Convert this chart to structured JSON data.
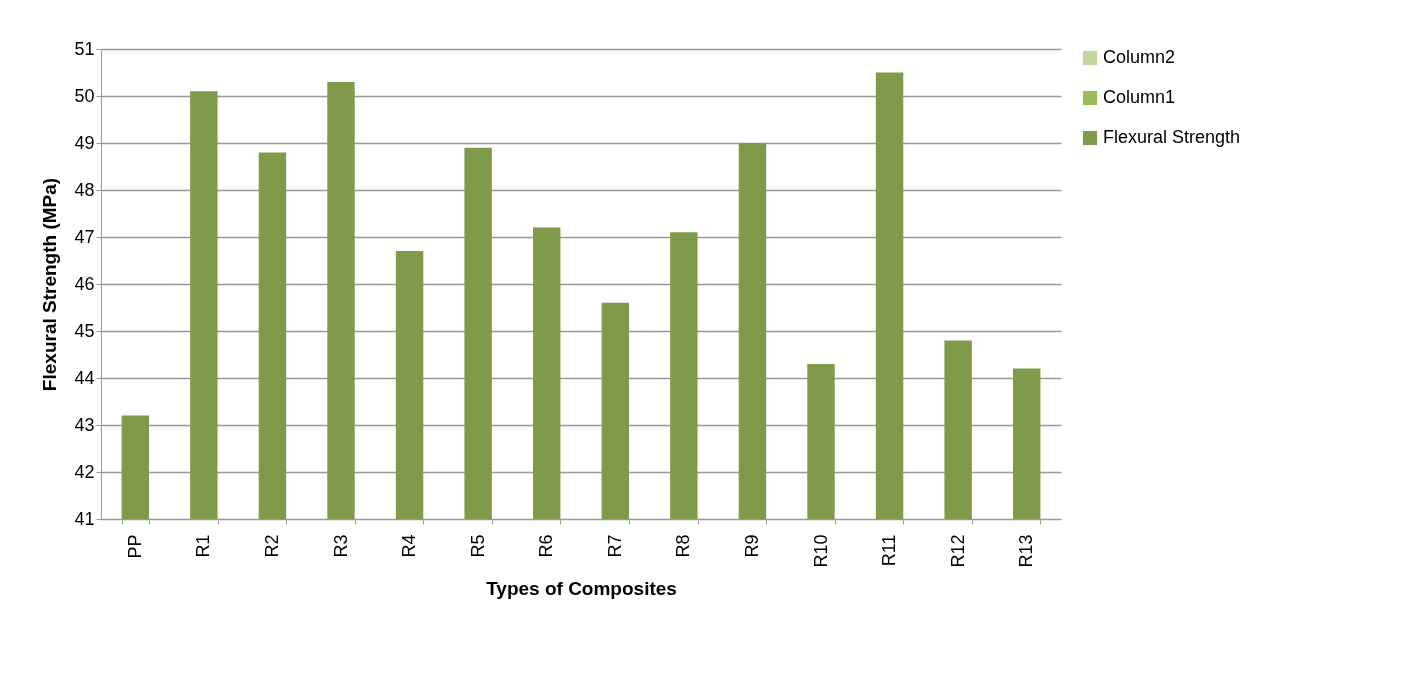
{
  "chart_data": {
    "type": "bar",
    "xlabel": "Types of Composites",
    "ylabel": "Flexural Strength (MPa)",
    "categories": [
      "PP",
      "R1",
      "R2",
      "R3",
      "R4",
      "R5",
      "R6",
      "R7",
      "R8",
      "R9",
      "R10",
      "R11",
      "R12",
      "R13"
    ],
    "series": [
      {
        "name": "Column2",
        "color": "#c3d69b",
        "values": [
          null,
          null,
          null,
          null,
          null,
          null,
          null,
          null,
          null,
          null,
          null,
          null,
          null,
          null
        ]
      },
      {
        "name": "Column1",
        "color": "#9bbb59",
        "values": [
          null,
          null,
          null,
          null,
          null,
          null,
          null,
          null,
          null,
          null,
          null,
          null,
          null,
          null
        ]
      },
      {
        "name": "Flexural Strength",
        "color": "#7f9a48",
        "values": [
          43.2,
          50.1,
          48.8,
          50.3,
          46.7,
          48.9,
          47.2,
          45.6,
          47.1,
          49.0,
          44.3,
          50.5,
          44.8,
          44.2
        ]
      }
    ],
    "ylim": [
      41,
      51
    ],
    "yticks": [
      41,
      42,
      43,
      44,
      45,
      46,
      47,
      48,
      49,
      50,
      51
    ],
    "grid": "y",
    "legend": "right"
  }
}
